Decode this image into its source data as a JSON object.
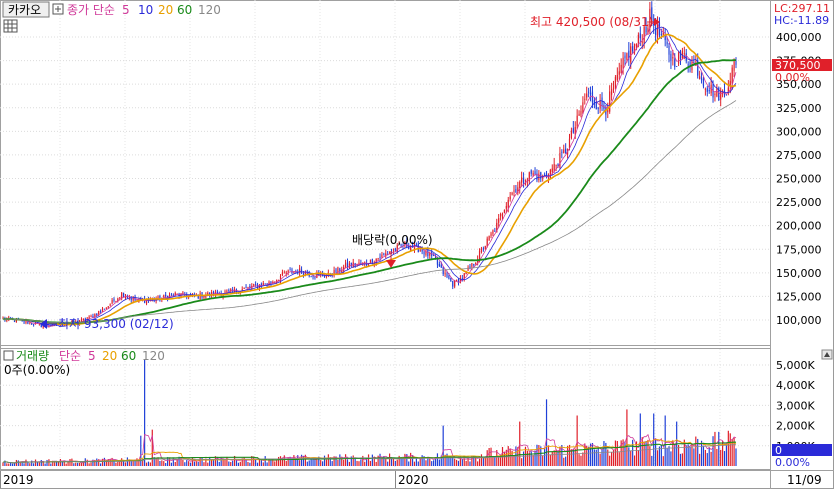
{
  "header": {
    "symbol": "카카오",
    "indicator_label": "종가 단순",
    "ma_periods": [
      "5",
      "10",
      "20",
      "60",
      "120"
    ],
    "lc_label": "LC:297.11",
    "hc_label": "HC:-11.89"
  },
  "annotations": {
    "high_label": "최고 420,500 (08/31)",
    "low_label": "최저 93,300 (02/12)",
    "dividend_label": "배당락(0,00%)"
  },
  "price_panel": {
    "current_price": "370,500",
    "current_change": "0.00%"
  },
  "volume_panel": {
    "title": "거래량",
    "indicator_label": "단순",
    "ma_periods": [
      "5",
      "20",
      "60",
      "120"
    ],
    "summary": "0주(0.00%)",
    "current_value": "0",
    "current_change": "0.00%"
  },
  "x_axis": {
    "labels": [
      "2019",
      "2020",
      "11/09"
    ]
  },
  "colors": {
    "ma5": "#d03a9a",
    "ma10": "#2a2ad8",
    "ma20": "#e8a000",
    "ma60": "#1a8a1a",
    "ma120": "#888888",
    "up": "#e0202a",
    "down": "#2040d8",
    "price_box": "#e0202a"
  },
  "chart_data": {
    "type": "candlestick",
    "price_axis": {
      "min": 75000,
      "max": 420500,
      "ticks": [
        "100,000",
        "125,000",
        "150,000",
        "175,000",
        "200,000",
        "225,000",
        "250,000",
        "275,000",
        "300,000",
        "325,000",
        "350,000",
        "375,000",
        "400,000"
      ]
    },
    "volume_axis": {
      "max": 5400,
      "ticks": [
        "1,000K",
        "2,000K",
        "3,000K",
        "4,000K",
        "5,000K"
      ]
    },
    "price_anchors": [
      [
        0,
        101000
      ],
      [
        12,
        98000
      ],
      [
        22,
        93300
      ],
      [
        30,
        96000
      ],
      [
        38,
        97000
      ],
      [
        45,
        102000
      ],
      [
        55,
        115000
      ],
      [
        62,
        128000
      ],
      [
        70,
        120000
      ],
      [
        80,
        122000
      ],
      [
        90,
        127000
      ],
      [
        100,
        125000
      ],
      [
        110,
        128000
      ],
      [
        120,
        130000
      ],
      [
        130,
        135000
      ],
      [
        140,
        140000
      ],
      [
        148,
        150000
      ],
      [
        155,
        152000
      ],
      [
        162,
        148000
      ],
      [
        170,
        147000
      ],
      [
        180,
        158000
      ],
      [
        190,
        160000
      ],
      [
        200,
        170000
      ],
      [
        210,
        180000
      ],
      [
        218,
        175000
      ],
      [
        225,
        165000
      ],
      [
        230,
        150000
      ],
      [
        235,
        138000
      ],
      [
        240,
        145000
      ],
      [
        246,
        160000
      ],
      [
        252,
        180000
      ],
      [
        258,
        200000
      ],
      [
        264,
        230000
      ],
      [
        270,
        245000
      ],
      [
        276,
        255000
      ],
      [
        282,
        250000
      ],
      [
        288,
        262000
      ],
      [
        294,
        280000
      ],
      [
        300,
        310000
      ],
      [
        305,
        340000
      ],
      [
        310,
        330000
      ],
      [
        315,
        325000
      ],
      [
        320,
        350000
      ],
      [
        326,
        380000
      ],
      [
        332,
        395000
      ],
      [
        338,
        420500
      ],
      [
        344,
        400000
      ],
      [
        350,
        375000
      ],
      [
        356,
        380000
      ],
      [
        362,
        370000
      ],
      [
        367,
        350000
      ],
      [
        372,
        340000
      ],
      [
        377,
        340000
      ],
      [
        382,
        370500
      ]
    ],
    "volume_spikes": [
      [
        74,
        5250
      ],
      [
        72,
        1500
      ],
      [
        78,
        1800
      ],
      [
        230,
        2000
      ],
      [
        284,
        3300
      ],
      [
        270,
        2200
      ],
      [
        300,
        2500
      ],
      [
        326,
        2800
      ],
      [
        333,
        2600
      ],
      [
        340,
        2600
      ],
      [
        346,
        2500
      ],
      [
        352,
        2200
      ],
      [
        382,
        1400
      ]
    ]
  }
}
